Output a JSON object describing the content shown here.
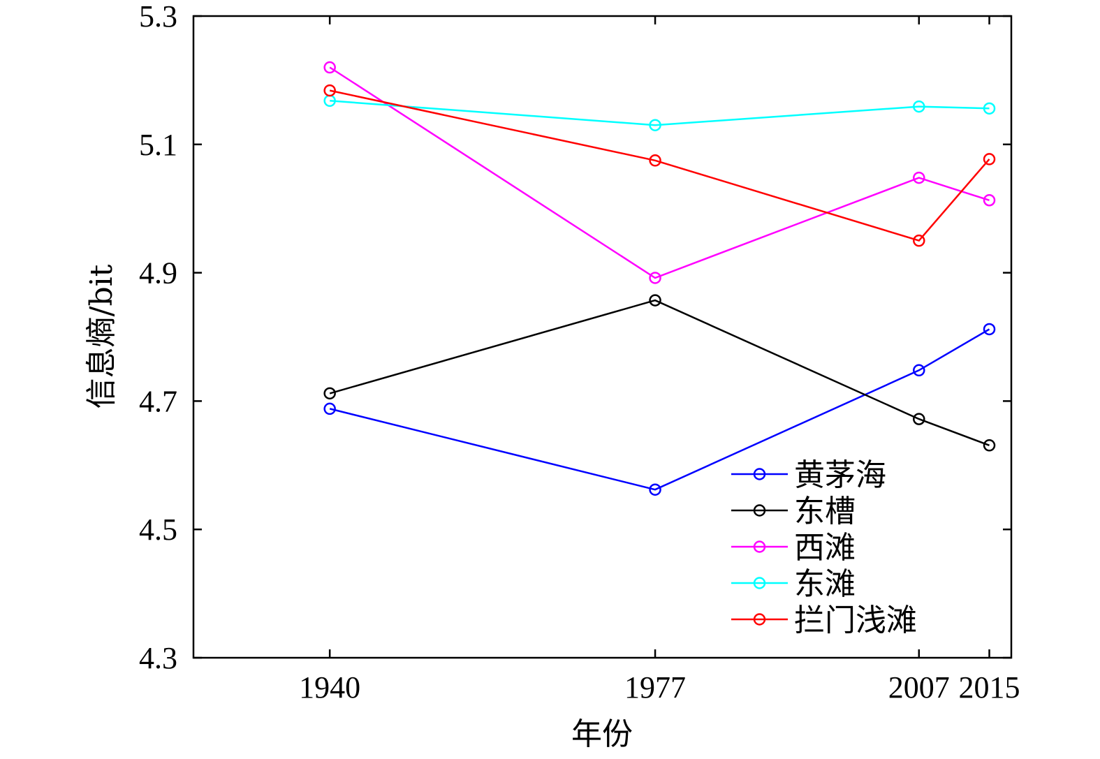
{
  "chart_data": {
    "type": "line",
    "xlabel": "年份",
    "ylabel": "信息熵/bit",
    "x": [
      1940,
      1977,
      2007,
      2015
    ],
    "x_tick_labels": [
      "1940",
      "1977",
      "2007",
      "2015"
    ],
    "ylim": [
      4.3,
      5.3
    ],
    "y_ticks": [
      4.3,
      4.5,
      4.7,
      4.9,
      5.1,
      5.3
    ],
    "y_tick_labels": [
      "4.3",
      "4.5",
      "4.7",
      "4.9",
      "5.1",
      "5.3"
    ],
    "grid": false,
    "legend_position": "bottom-right",
    "marker": "open-circle",
    "series": [
      {
        "name": "黄茅海",
        "color": "#0000ff",
        "values": [
          4.688,
          4.562,
          4.748,
          4.812
        ]
      },
      {
        "name": "东槽",
        "color": "#000000",
        "values": [
          4.712,
          4.857,
          4.672,
          4.631
        ]
      },
      {
        "name": "西滩",
        "color": "#ff00ff",
        "values": [
          5.22,
          4.892,
          5.048,
          5.013
        ]
      },
      {
        "name": "东滩",
        "color": "#00ffff",
        "values": [
          5.168,
          5.13,
          5.159,
          5.156
        ]
      },
      {
        "name": "拦门浅滩",
        "color": "#ff0000",
        "values": [
          5.184,
          5.075,
          4.95,
          5.077
        ]
      }
    ]
  }
}
